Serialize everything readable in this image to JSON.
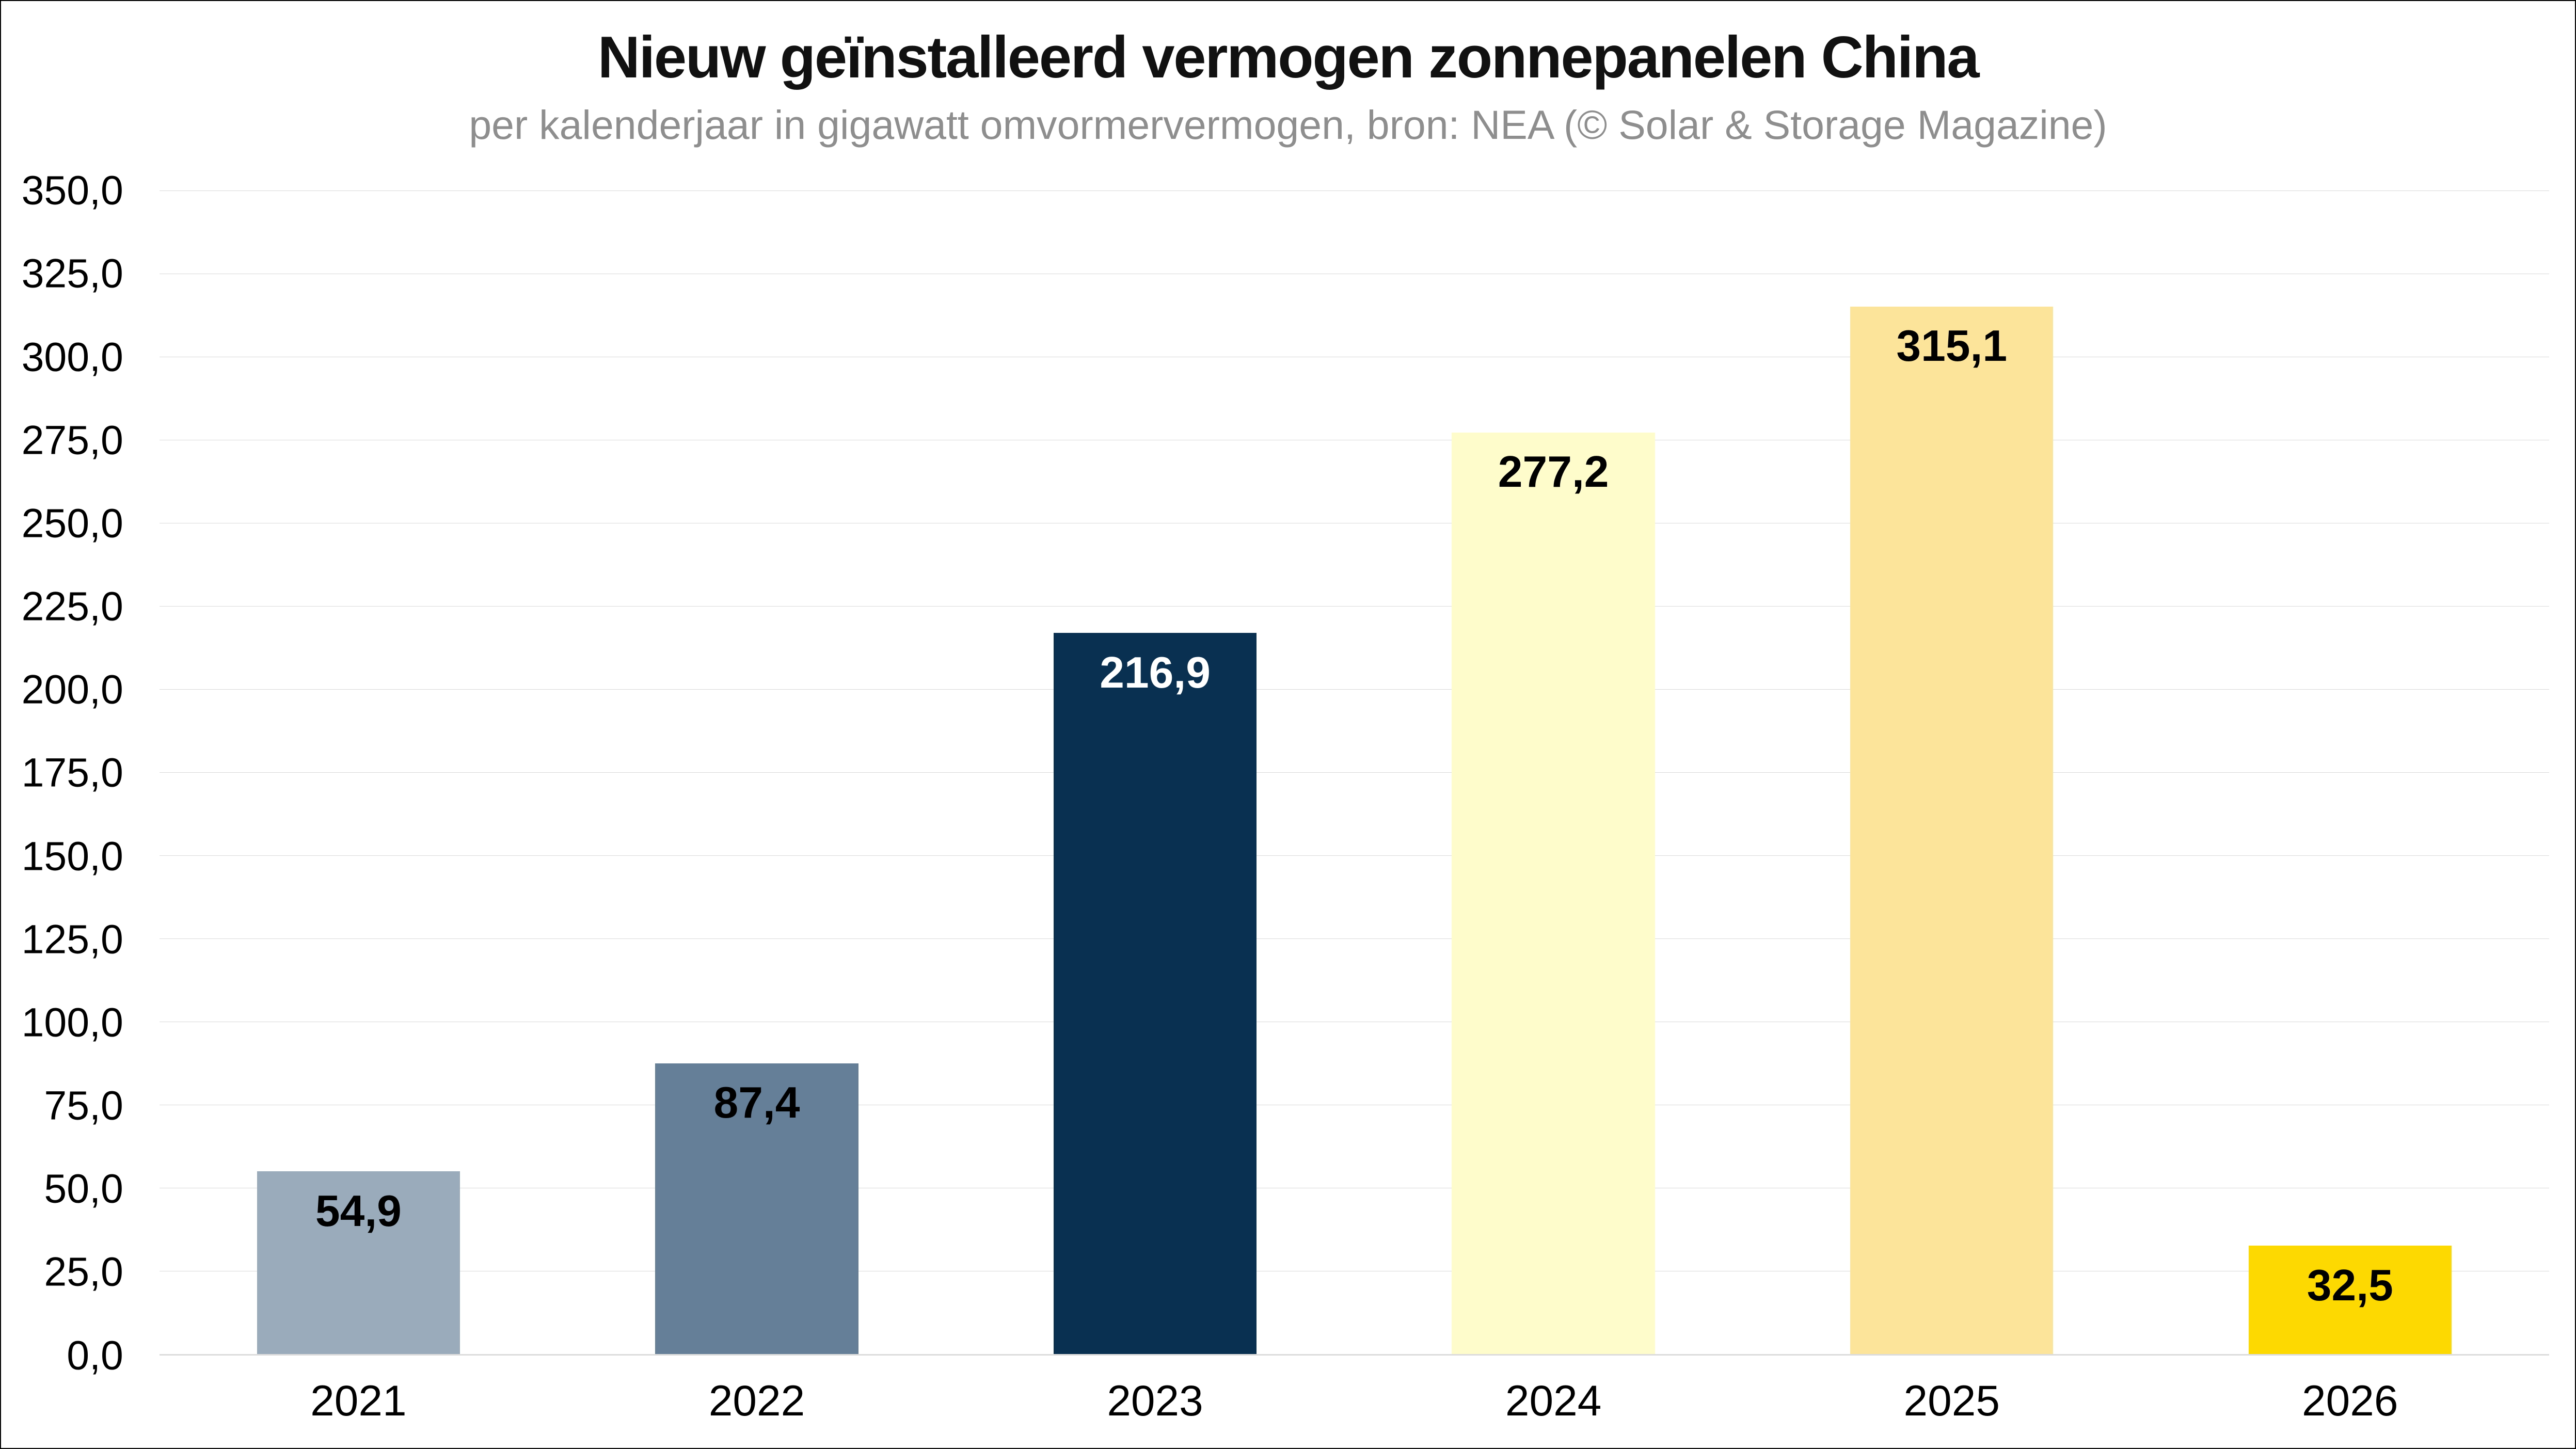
{
  "chart_data": {
    "type": "bar",
    "title": "Nieuw geïnstalleerd vermogen zonnepanelen China",
    "subtitle": "per kalenderjaar in gigawatt omvormervermogen, bron: NEA (© Solar & Storage Magazine)",
    "categories": [
      "2021",
      "2022",
      "2023",
      "2024",
      "2025",
      "2026"
    ],
    "values": [
      54.9,
      87.4,
      216.9,
      277.2,
      315.1,
      32.5
    ],
    "value_labels": [
      "54,9",
      "87,4",
      "216,9",
      "277,2",
      "315,1",
      "32,5"
    ],
    "bar_colors": [
      "#9aabbb",
      "#657f99",
      "#0a3051",
      "#fdfcca",
      "#fce49a",
      "#fed801"
    ],
    "value_label_colors": [
      "#000000",
      "#000000",
      "#ffffff",
      "#000000",
      "#000000",
      "#000000"
    ],
    "xlabel": "",
    "ylabel": "",
    "ylim": [
      0,
      350
    ],
    "ytick_step": 25,
    "ytick_labels": [
      "350,0",
      "325,0",
      "300,0",
      "275,0",
      "250,0",
      "225,0",
      "200,0",
      "175,0",
      "150,0",
      "125,0",
      "100,0",
      "75,0",
      "50,0",
      "25,0",
      "0,0"
    ],
    "grid": "horizontal",
    "legend": "none"
  },
  "colors": {
    "background": "#ffffff",
    "border": "#000000",
    "gridline": "#d9d9d9",
    "baseline": "#dcdcdc",
    "title": "#111111",
    "subtitle": "#8e8e8e",
    "tick_text": "#000000"
  }
}
